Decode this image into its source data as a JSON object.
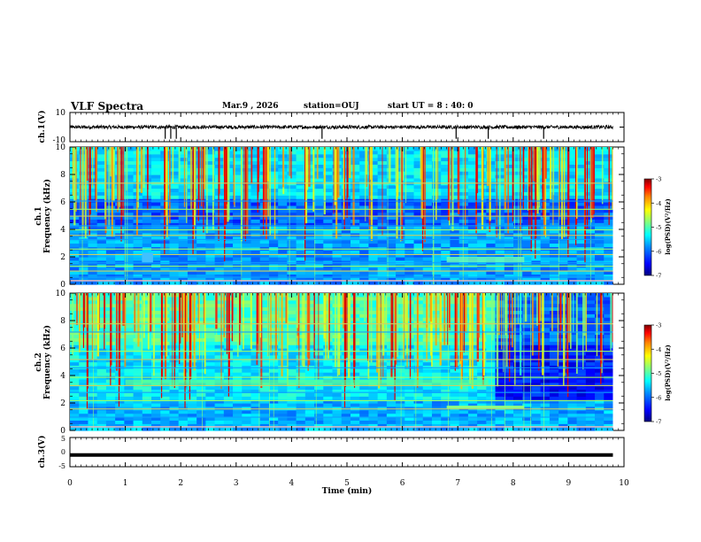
{
  "header": {
    "title": "VLF Spectra",
    "date": "Mar.9 , 2026",
    "station": "station=OUJ",
    "start": "start UT = 8 : 40: 0"
  },
  "chart_data": [
    {
      "type": "line",
      "name": "waveform-ch1",
      "ylabel": "ch.1(V)",
      "ylim": [
        -10,
        10
      ],
      "yticks": [
        "10",
        "-10"
      ],
      "xlim": [
        0,
        10
      ],
      "description_level": 0,
      "spikes_at_min": [
        1.72,
        1.82,
        1.92,
        4.55,
        6.97,
        7.55,
        8.55
      ]
    },
    {
      "type": "heatmap",
      "name": "spectrogram-ch1",
      "ylabel": "ch.1\nFrequency (kHz)",
      "ylabel_line1": "ch.1",
      "ylabel_line2": "Frequency (kHz)",
      "ylim": [
        0,
        10
      ],
      "yticks": [
        "0",
        "2",
        "4",
        "6",
        "8",
        "10"
      ],
      "xlim": [
        0,
        10
      ],
      "data_end_min": 9.8,
      "colorbar": {
        "label": "log(PSD)(V²/Hz)",
        "range": [
          -7,
          -3
        ],
        "ticks": [
          "-3",
          "-4",
          "-5",
          "-6",
          "-7"
        ]
      },
      "lines_khz": [
        0.3,
        0.55,
        1.0,
        1.35,
        1.6,
        2.2,
        2.6,
        3.3,
        3.6,
        4.0,
        4.3,
        5.0,
        5.5,
        6.1,
        7.4
      ]
    },
    {
      "type": "heatmap",
      "name": "spectrogram-ch2",
      "ylabel_line1": "ch.2",
      "ylabel_line2": "Frequency (kHz)",
      "ylim": [
        0,
        10
      ],
      "yticks": [
        "0",
        "2",
        "4",
        "6",
        "8",
        "10"
      ],
      "xlim": [
        0,
        10
      ],
      "data_end_min": 9.8,
      "colorbar": {
        "label": "log(PSD)(V²/Hz)",
        "range": [
          -7,
          -3
        ],
        "ticks": [
          "-3",
          "-4",
          "-5",
          "-6",
          "-7"
        ]
      },
      "lines_khz": [
        0.3,
        1.0,
        1.6,
        2.2,
        2.8,
        3.3,
        3.9,
        4.6,
        5.2,
        5.8,
        7.2,
        7.8
      ]
    },
    {
      "type": "line",
      "name": "waveform-ch3",
      "ylabel": "ch.3(V)",
      "ylim": [
        -5,
        5
      ],
      "yticks": [
        "5",
        "0",
        "-5"
      ],
      "xlim": [
        0,
        10
      ],
      "level": -1
    }
  ],
  "xaxis": {
    "label": "Time (min)",
    "ticks": [
      "0",
      "1",
      "2",
      "3",
      "4",
      "5",
      "6",
      "7",
      "8",
      "9",
      "10"
    ]
  },
  "colors": {
    "cmap": [
      "#00007f",
      "#0000ff",
      "#0080ff",
      "#00ffff",
      "#80ff80",
      "#ffff00",
      "#ff8000",
      "#ff0000",
      "#7f0000"
    ]
  }
}
